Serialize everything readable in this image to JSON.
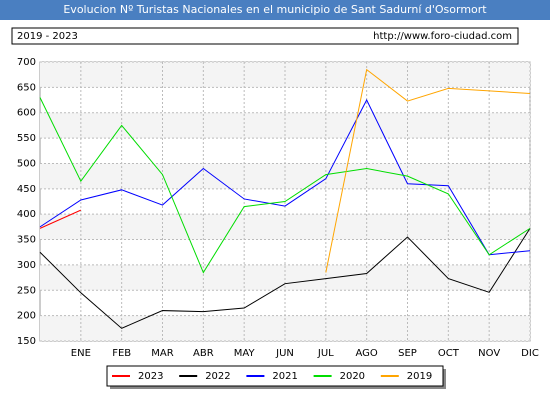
{
  "chart_data": {
    "type": "line",
    "title": "Evolucion Nº Turistas Nacionales en el municipio de Sant Sadurní d'Osormort",
    "subtitle": "2019 - 2023",
    "source": "http://www.foro-ciudad.com",
    "categories": [
      null,
      "ENE",
      "FEB",
      "MAR",
      "ABR",
      "MAY",
      "JUN",
      "JUL",
      "AGO",
      "SEP",
      "OCT",
      "NOV",
      "DIC"
    ],
    "series": [
      {
        "name": "2023",
        "color": "#ff0000",
        "values": [
          372,
          408,
          null,
          null,
          null,
          null,
          null,
          null,
          null,
          null,
          null,
          null,
          null
        ]
      },
      {
        "name": "2022",
        "color": "#000000",
        "values": [
          325,
          245,
          175,
          210,
          208,
          215,
          263,
          273,
          283,
          355,
          273,
          246,
          372
        ]
      },
      {
        "name": "2021",
        "color": "#0000ff",
        "values": [
          375,
          428,
          448,
          418,
          490,
          430,
          416,
          470,
          625,
          460,
          456,
          320,
          328
        ]
      },
      {
        "name": "2020",
        "color": "#00dd00",
        "values": [
          630,
          465,
          575,
          478,
          285,
          415,
          425,
          478,
          490,
          475,
          440,
          320,
          372
        ]
      },
      {
        "name": "2019",
        "color": "#ffa500",
        "values": [
          null,
          null,
          null,
          null,
          null,
          null,
          null,
          285,
          685,
          623,
          648,
          643,
          638
        ]
      }
    ],
    "ylim": [
      150,
      700
    ],
    "yticks": [
      150,
      200,
      250,
      300,
      350,
      400,
      450,
      500,
      550,
      600,
      650,
      700
    ],
    "grid": true
  }
}
